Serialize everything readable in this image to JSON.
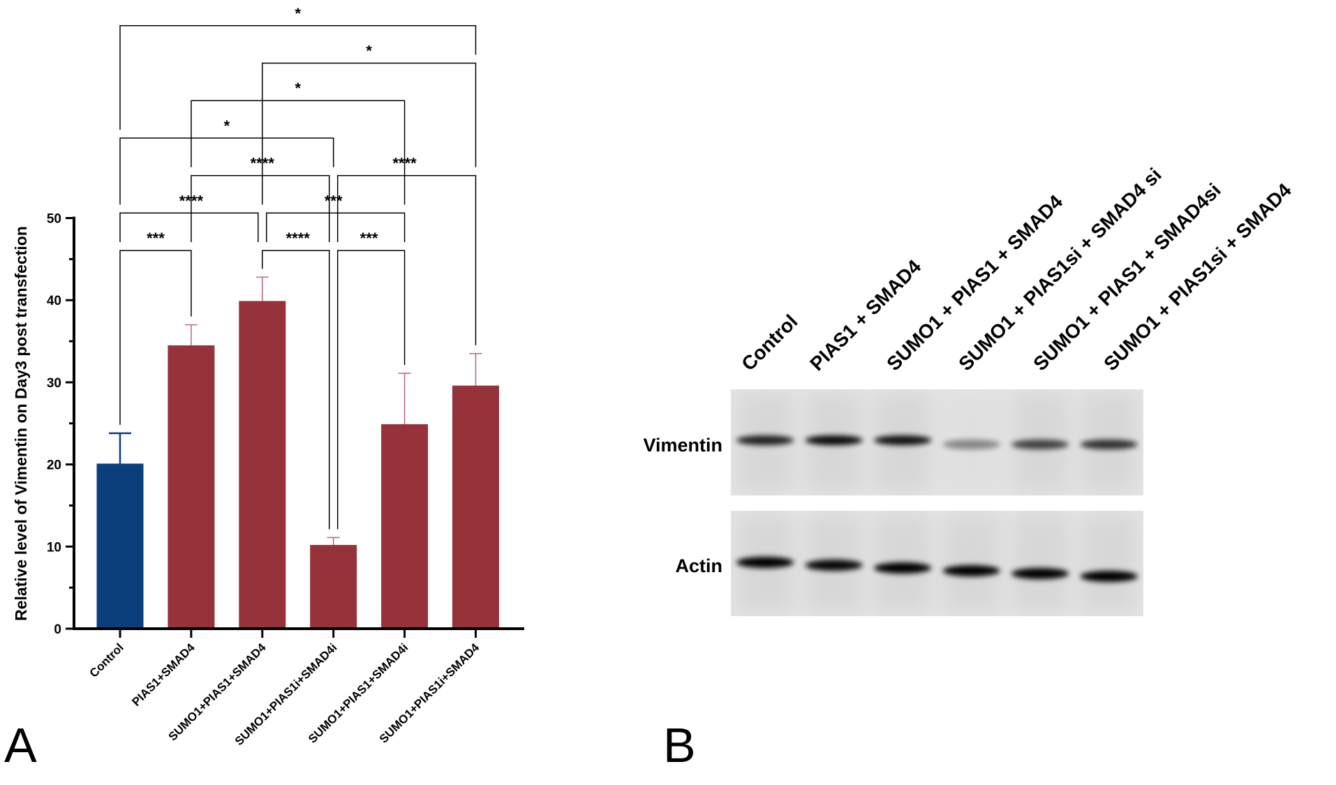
{
  "panel_labels": {
    "a": "A",
    "b": "B"
  },
  "chart_data": {
    "type": "bar",
    "title": "",
    "xlabel": "",
    "ylabel": "Relative level of Vimentin on Day3 post transfection",
    "ylim": [
      0,
      50
    ],
    "yticks": [
      0,
      10,
      20,
      30,
      40,
      50
    ],
    "grid": false,
    "categories": [
      "Control",
      "PIAS1+SMAD4",
      "SUMO1+PIAS1+SMAD4",
      "SUMO1+PIAS1i+SMAD4i",
      "SUMO1+PIAS1+SMAD4i",
      "SUMO1+PIAS1i+SMAD4"
    ],
    "values": [
      20.1,
      34.5,
      39.9,
      10.2,
      24.9,
      29.6
    ],
    "errors": [
      3.7,
      2.5,
      2.9,
      0.9,
      6.2,
      3.9
    ],
    "colors": [
      "#0a3f7c",
      "#96333a",
      "#96333a",
      "#96333a",
      "#96333a",
      "#96333a"
    ],
    "error_colors": [
      "#0a3f7c",
      "#c2668e",
      "#c2668e",
      "#c2668e",
      "#c2668e",
      "#c2668e"
    ],
    "significance": [
      {
        "from": 0,
        "to": 1,
        "level": 1,
        "label": "***"
      },
      {
        "from": 2,
        "to": 3,
        "level": 1,
        "label": "****"
      },
      {
        "from": 3,
        "to": 4,
        "level": 1,
        "label": "***"
      },
      {
        "from": 0,
        "to": 2,
        "level": 2,
        "label": "****"
      },
      {
        "from": 2,
        "to": 4,
        "level": 2,
        "label": "***"
      },
      {
        "from": 1,
        "to": 3,
        "level": 3,
        "label": "****"
      },
      {
        "from": 3,
        "to": 5,
        "level": 3,
        "label": "****"
      },
      {
        "from": 0,
        "to": 3,
        "level": 4,
        "label": "*"
      },
      {
        "from": 1,
        "to": 4,
        "level": 5,
        "label": "*"
      },
      {
        "from": 2,
        "to": 5,
        "level": 6,
        "label": "*"
      },
      {
        "from": 0,
        "to": 5,
        "level": 7,
        "label": "*"
      }
    ]
  },
  "blot": {
    "lanes": [
      "Control",
      "PIAS1 + SMAD4",
      "SUMO1 + PIAS1 + SMAD4",
      "SUMO1 + PIAS1si + SMAD4 si",
      "SUMO1 + PIAS1 + SMAD4si",
      "SUMO1 + PIAS1si + SMAD4"
    ],
    "rows": [
      {
        "label": "Vimentin",
        "intensity": [
          0.8,
          0.95,
          0.9,
          0.2,
          0.6,
          0.7
        ]
      },
      {
        "label": "Actin",
        "intensity": [
          1.0,
          0.95,
          1.0,
          1.0,
          1.0,
          1.0
        ]
      }
    ]
  }
}
